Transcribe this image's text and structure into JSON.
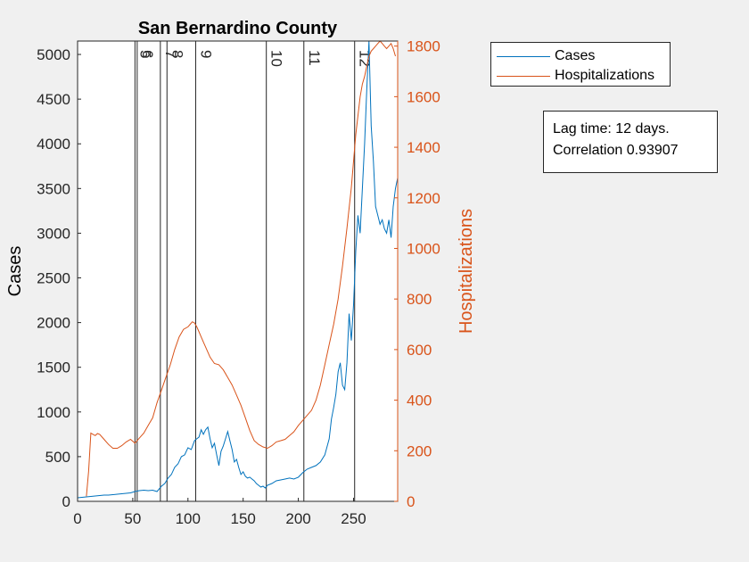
{
  "chart_data": {
    "type": "line",
    "title": "San Bernardino County",
    "xlabel": "",
    "ylabel_left": "Cases",
    "ylabel_right": "Hospitalizations",
    "xlim": [
      0,
      290
    ],
    "ylim_left": [
      0,
      5150
    ],
    "ylim_right": [
      0,
      1820
    ],
    "x_ticks": [
      0,
      50,
      100,
      150,
      200,
      250
    ],
    "y_ticks_left": [
      0,
      500,
      1000,
      1500,
      2000,
      2500,
      3000,
      3500,
      4000,
      4500,
      5000
    ],
    "y_ticks_right": [
      0,
      200,
      400,
      600,
      800,
      1000,
      1200,
      1400,
      1600,
      1800
    ],
    "grid": false,
    "legend_position": "outside-top-right",
    "colors": {
      "cases": "#0072bd",
      "hospitalizations": "#d95319"
    },
    "series": [
      {
        "name": "Cases",
        "axis": "left",
        "x": [
          0,
          4,
          8,
          12,
          16,
          20,
          24,
          28,
          32,
          36,
          40,
          44,
          48,
          52,
          56,
          60,
          64,
          68,
          72,
          76,
          79,
          82,
          85,
          88,
          91,
          94,
          97,
          100,
          103,
          106,
          108,
          110,
          112,
          114,
          116,
          118,
          120,
          122,
          124,
          126,
          128,
          130,
          132,
          134,
          136,
          138,
          140,
          142,
          144,
          146,
          148,
          150,
          152,
          154,
          156,
          158,
          160,
          162,
          164,
          166,
          168,
          170,
          172,
          176,
          180,
          184,
          188,
          192,
          196,
          200,
          204,
          208,
          212,
          216,
          220,
          224,
          228,
          230,
          232,
          234,
          236,
          238,
          240,
          242,
          244,
          246,
          248,
          250,
          252,
          254,
          256,
          258,
          260,
          262,
          264,
          266,
          268,
          270,
          272,
          274,
          276,
          278,
          280,
          282,
          284,
          286,
          288,
          290
        ],
        "y": [
          40,
          45,
          50,
          55,
          60,
          65,
          70,
          70,
          75,
          80,
          85,
          90,
          95,
          110,
          120,
          125,
          120,
          125,
          110,
          170,
          200,
          260,
          300,
          380,
          420,
          500,
          520,
          600,
          580,
          680,
          700,
          720,
          800,
          750,
          800,
          830,
          700,
          600,
          650,
          520,
          400,
          560,
          620,
          700,
          780,
          680,
          580,
          440,
          470,
          380,
          300,
          330,
          280,
          260,
          270,
          250,
          230,
          200,
          180,
          160,
          170,
          150,
          180,
          200,
          230,
          240,
          250,
          260,
          250,
          270,
          320,
          360,
          380,
          400,
          440,
          520,
          700,
          920,
          1050,
          1200,
          1450,
          1550,
          1300,
          1250,
          1550,
          2100,
          1800,
          2200,
          2800,
          3200,
          3000,
          3500,
          4000,
          4600,
          5150,
          4200,
          3800,
          3300,
          3200,
          3100,
          3150,
          3050,
          3000,
          3150,
          2950,
          3300,
          3500,
          3620
        ]
      },
      {
        "name": "Hospitalizations",
        "axis": "right",
        "x": [
          0,
          6,
          8,
          10,
          12,
          14,
          16,
          18,
          20,
          24,
          28,
          32,
          36,
          40,
          44,
          48,
          52,
          56,
          60,
          64,
          68,
          72,
          76,
          80,
          84,
          88,
          92,
          96,
          100,
          102,
          104,
          106,
          108,
          110,
          112,
          114,
          116,
          120,
          124,
          128,
          132,
          136,
          140,
          144,
          148,
          152,
          156,
          160,
          164,
          168,
          172,
          176,
          180,
          184,
          188,
          192,
          196,
          200,
          204,
          208,
          212,
          216,
          220,
          224,
          228,
          232,
          236,
          240,
          244,
          248,
          252,
          256,
          258,
          260,
          262,
          264,
          266,
          268,
          270,
          272,
          274,
          276,
          278,
          280,
          282,
          284,
          286,
          288
        ],
        "y": [
          null,
          null,
          20,
          120,
          270,
          265,
          260,
          268,
          265,
          245,
          225,
          210,
          210,
          220,
          235,
          245,
          230,
          250,
          270,
          300,
          330,
          390,
          440,
          490,
          540,
          600,
          650,
          680,
          690,
          700,
          710,
          705,
          690,
          670,
          650,
          630,
          610,
          570,
          545,
          540,
          520,
          490,
          460,
          420,
          380,
          330,
          280,
          240,
          225,
          215,
          210,
          220,
          235,
          240,
          245,
          260,
          275,
          300,
          320,
          340,
          360,
          400,
          460,
          540,
          620,
          700,
          800,
          930,
          1080,
          1240,
          1450,
          1600,
          1650,
          1680,
          1720,
          1760,
          1780,
          1790,
          1800,
          1810,
          1825,
          1810,
          1800,
          1790,
          1800,
          1810,
          1790,
          1760
        ]
      }
    ],
    "vlines": [
      {
        "x": 52,
        "label": "5"
      },
      {
        "x": 54,
        "label": "6"
      },
      {
        "x": 75,
        "label": "7"
      },
      {
        "x": 81,
        "label": "8"
      },
      {
        "x": 107,
        "label": "9"
      },
      {
        "x": 171,
        "label": "10"
      },
      {
        "x": 205,
        "label": "11"
      },
      {
        "x": 251,
        "label": "12"
      }
    ]
  },
  "legend": {
    "cases_label": "Cases",
    "hospitalizations_label": "Hospitalizations"
  },
  "annotation": {
    "lag_text": "Lag time: 12 days.",
    "correlation_text": "Correlation 0.93907"
  }
}
